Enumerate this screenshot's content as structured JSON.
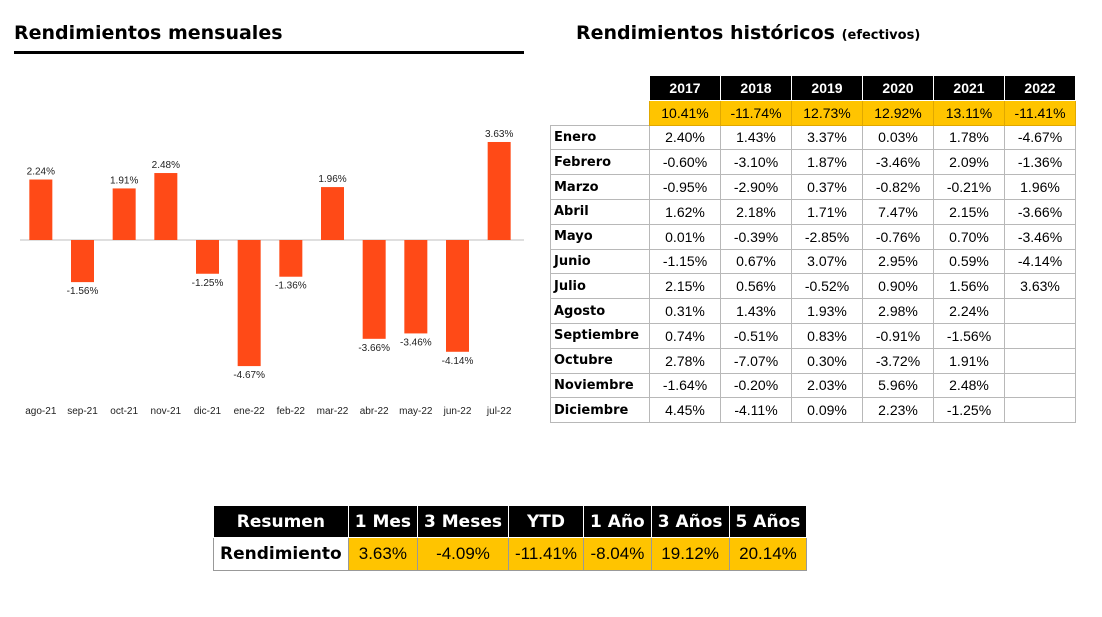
{
  "titles": {
    "monthly": "Rendimientos mensuales",
    "historic": "Rendimientos históricos",
    "historic_sub": "(efectivos)"
  },
  "chart_data": {
    "type": "bar",
    "categories": [
      "ago-21",
      "sep-21",
      "oct-21",
      "nov-21",
      "dic-21",
      "ene-22",
      "feb-22",
      "mar-22",
      "abr-22",
      "may-22",
      "jun-22",
      "jul-22"
    ],
    "values": [
      2.24,
      -1.56,
      1.91,
      2.48,
      -1.25,
      -4.67,
      -1.36,
      1.96,
      -3.66,
      -3.46,
      -4.14,
      3.63
    ],
    "labels": [
      "2.24%",
      "-1.56%",
      "1.91%",
      "2.48%",
      "-1.25%",
      "-4.67%",
      "-1.36%",
      "1.96%",
      "-3.66%",
      "-3.46%",
      "-4.14%",
      "3.63%"
    ],
    "title": "Rendimientos mensuales",
    "bar_color": "#ff4a17",
    "grid": false,
    "ylim": [
      -5.2,
      4.2
    ]
  },
  "historic": {
    "years": [
      "2017",
      "2018",
      "2019",
      "2020",
      "2021",
      "2022"
    ],
    "annual": [
      "10.41%",
      "-11.74%",
      "12.73%",
      "12.92%",
      "13.11%",
      "-11.41%"
    ],
    "rows": [
      {
        "month": "Enero",
        "values": [
          "2.40%",
          "1.43%",
          "3.37%",
          "0.03%",
          "1.78%",
          "-4.67%"
        ]
      },
      {
        "month": "Febrero",
        "values": [
          "-0.60%",
          "-3.10%",
          "1.87%",
          "-3.46%",
          "2.09%",
          "-1.36%"
        ]
      },
      {
        "month": "Marzo",
        "values": [
          "-0.95%",
          "-2.90%",
          "0.37%",
          "-0.82%",
          "-0.21%",
          "1.96%"
        ]
      },
      {
        "month": "Abril",
        "values": [
          "1.62%",
          "2.18%",
          "1.71%",
          "7.47%",
          "2.15%",
          "-3.66%"
        ]
      },
      {
        "month": "Mayo",
        "values": [
          "0.01%",
          "-0.39%",
          "-2.85%",
          "-0.76%",
          "0.70%",
          "-3.46%"
        ]
      },
      {
        "month": "Junio",
        "values": [
          "-1.15%",
          "0.67%",
          "3.07%",
          "2.95%",
          "0.59%",
          "-4.14%"
        ]
      },
      {
        "month": "Julio",
        "values": [
          "2.15%",
          "0.56%",
          "-0.52%",
          "0.90%",
          "1.56%",
          "3.63%"
        ]
      },
      {
        "month": "Agosto",
        "values": [
          "0.31%",
          "1.43%",
          "1.93%",
          "2.98%",
          "2.24%",
          ""
        ]
      },
      {
        "month": "Septiembre",
        "values": [
          "0.74%",
          "-0.51%",
          "0.83%",
          "-0.91%",
          "-1.56%",
          ""
        ]
      },
      {
        "month": "Octubre",
        "values": [
          "2.78%",
          "-7.07%",
          "0.30%",
          "-3.72%",
          "1.91%",
          ""
        ]
      },
      {
        "month": "Noviembre",
        "values": [
          "-1.64%",
          "-0.20%",
          "2.03%",
          "5.96%",
          "2.48%",
          ""
        ]
      },
      {
        "month": "Diciembre",
        "values": [
          "4.45%",
          "-4.11%",
          "0.09%",
          "2.23%",
          "-1.25%",
          ""
        ]
      }
    ]
  },
  "summary": {
    "header_label": "Resumen",
    "row_label": "Rendimiento",
    "periods": [
      "1 Mes",
      "3 Meses",
      "YTD",
      "1 Año",
      "3 Años",
      "5 Años"
    ],
    "values": [
      "3.63%",
      "-4.09%",
      "-11.41%",
      "-8.04%",
      "19.12%",
      "20.14%"
    ]
  },
  "colors": {
    "accent": "#ffc400",
    "bar": "#ff4a17",
    "header": "#000000"
  }
}
